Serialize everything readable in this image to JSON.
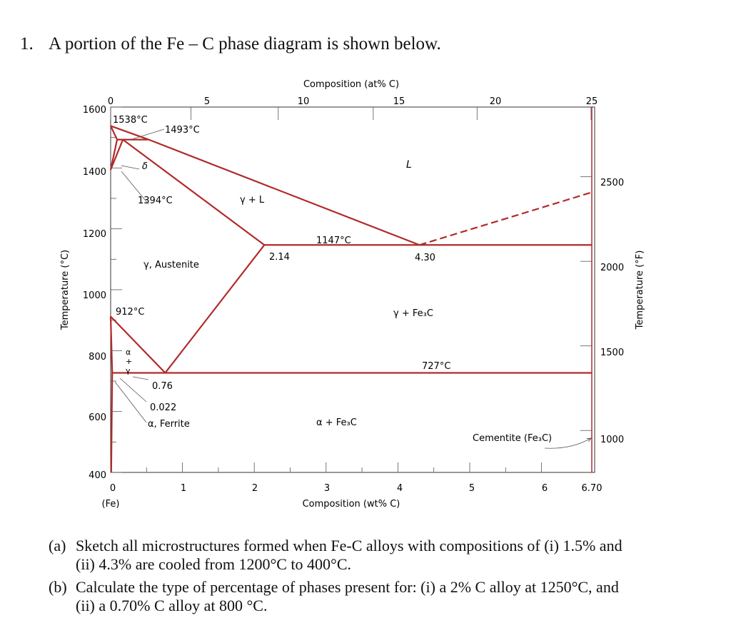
{
  "question": {
    "number": "1.",
    "text": "A portion of the Fe – C phase diagram is shown below."
  },
  "parts": [
    {
      "label": "(a)",
      "line1": "Sketch all microstructures formed when Fe-C alloys with compositions of (i) 1.5% and",
      "line2": "(ii) 4.3% are cooled from 1200°C to 400°C."
    },
    {
      "label": "(b)",
      "line1": "Calculate the type of percentage of phases present for:  (i) a 2% C alloy at 1250°C, and",
      "line2": "(ii) a 0.70% C alloy at 800 °C."
    }
  ],
  "chart_data": {
    "type": "phase-diagram",
    "top_axis": {
      "label": "Composition (at% C)",
      "ticks": [
        "0",
        "5",
        "10",
        "15",
        "20",
        "25"
      ]
    },
    "bottom_axis": {
      "label": "Composition (wt% C)",
      "ticks": [
        "0",
        "1",
        "2",
        "3",
        "4",
        "5",
        "6",
        "6.70"
      ],
      "sub_label": "(Fe)"
    },
    "left_axis": {
      "label": "Temperature (°C)",
      "ticks": [
        "400",
        "600",
        "800",
        "1000",
        "1200",
        "1400",
        "1600"
      ]
    },
    "right_axis": {
      "label": "Temperature (°F)",
      "ticks": [
        "1000",
        "1500",
        "2000",
        "2500"
      ]
    },
    "region_labels": {
      "liquid": "L",
      "gamma_liquid": "γ + L",
      "austenite": "γ, Austenite",
      "gamma_cementite": "γ + Fe₃C",
      "alpha_cementite": "α + Fe₃C",
      "ferrite": "α, Ferrite",
      "delta": "δ",
      "alpha_gamma": [
        "α",
        "+",
        "γ"
      ],
      "cementite": "Cementite (Fe₃C)"
    },
    "point_labels": {
      "t1538": "1538°C",
      "t1493": "1493°C",
      "t1394": "1394°C",
      "t1147": "1147°C",
      "t912": "912°C",
      "t727": "727°C",
      "c214": "2.14",
      "c430": "4.30",
      "c076": "0.76",
      "c0022": "0.022"
    },
    "line_color": "#b22a2a",
    "lines": {
      "liquidus_left": [
        [
          0,
          1538
        ],
        [
          0.53,
          1493
        ],
        [
          4.3,
          1147
        ]
      ],
      "liquidus_right": [
        [
          4.3,
          1147
        ],
        [
          6.7,
          1320
        ]
      ],
      "solidus_gamma": [
        [
          0.17,
          1493
        ],
        [
          2.14,
          1147
        ]
      ],
      "eutectic": [
        [
          2.14,
          1147
        ],
        [
          6.7,
          1147
        ]
      ],
      "eutectoid": [
        [
          0.022,
          727
        ],
        [
          6.7,
          727
        ]
      ],
      "acm": [
        [
          2.14,
          1147
        ],
        [
          0.76,
          727
        ]
      ],
      "a3": [
        [
          0,
          912
        ],
        [
          0.76,
          727
        ]
      ],
      "alpha_gamma_lower": [
        [
          0,
          912
        ],
        [
          0.022,
          727
        ]
      ],
      "solvus_alpha": [
        [
          0.022,
          727
        ],
        [
          0.008,
          400
        ]
      ],
      "delta_region": [
        [
          0,
          1538
        ],
        [
          0.09,
          1493
        ],
        [
          0.53,
          1493
        ]
      ],
      "delta_gamma_1": [
        [
          0,
          1394
        ],
        [
          0.09,
          1493
        ]
      ],
      "delta_gamma_2": [
        [
          0,
          1394
        ],
        [
          0.17,
          1493
        ]
      ],
      "cementite_line": [
        [
          6.7,
          400
        ],
        [
          6.7,
          1600
        ]
      ]
    }
  }
}
